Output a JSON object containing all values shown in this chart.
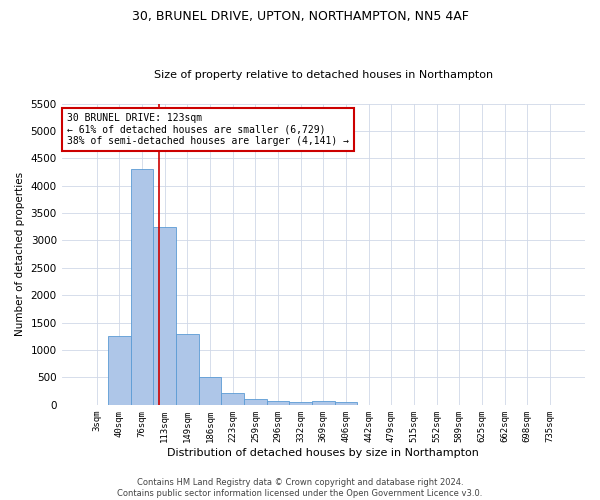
{
  "title1": "30, BRUNEL DRIVE, UPTON, NORTHAMPTON, NN5 4AF",
  "title2": "Size of property relative to detached houses in Northampton",
  "xlabel": "Distribution of detached houses by size in Northampton",
  "ylabel": "Number of detached properties",
  "categories": [
    "3sqm",
    "40sqm",
    "76sqm",
    "113sqm",
    "149sqm",
    "186sqm",
    "223sqm",
    "259sqm",
    "296sqm",
    "332sqm",
    "369sqm",
    "406sqm",
    "442sqm",
    "479sqm",
    "515sqm",
    "552sqm",
    "589sqm",
    "625sqm",
    "662sqm",
    "698sqm",
    "735sqm"
  ],
  "values": [
    0,
    1250,
    4300,
    3250,
    1300,
    500,
    225,
    100,
    75,
    60,
    75,
    60,
    0,
    0,
    0,
    0,
    0,
    0,
    0,
    0,
    0
  ],
  "bar_color": "#aec6e8",
  "bar_edge_color": "#5b9bd5",
  "ylim": [
    0,
    5500
  ],
  "yticks": [
    0,
    500,
    1000,
    1500,
    2000,
    2500,
    3000,
    3500,
    4000,
    4500,
    5000,
    5500
  ],
  "property_line_x": 2.73,
  "property_line_color": "#cc0000",
  "annotation_text": "30 BRUNEL DRIVE: 123sqm\n← 61% of detached houses are smaller (6,729)\n38% of semi-detached houses are larger (4,141) →",
  "annotation_box_color": "#ffffff",
  "annotation_box_edge": "#cc0000",
  "footer": "Contains HM Land Registry data © Crown copyright and database right 2024.\nContains public sector information licensed under the Open Government Licence v3.0.",
  "bg_color": "#ffffff",
  "grid_color": "#d0d8e8",
  "title1_fontsize": 9,
  "title2_fontsize": 8,
  "xlabel_fontsize": 8,
  "ylabel_fontsize": 7.5,
  "xtick_fontsize": 6.5,
  "ytick_fontsize": 7.5,
  "ann_fontsize": 7,
  "footer_fontsize": 6
}
